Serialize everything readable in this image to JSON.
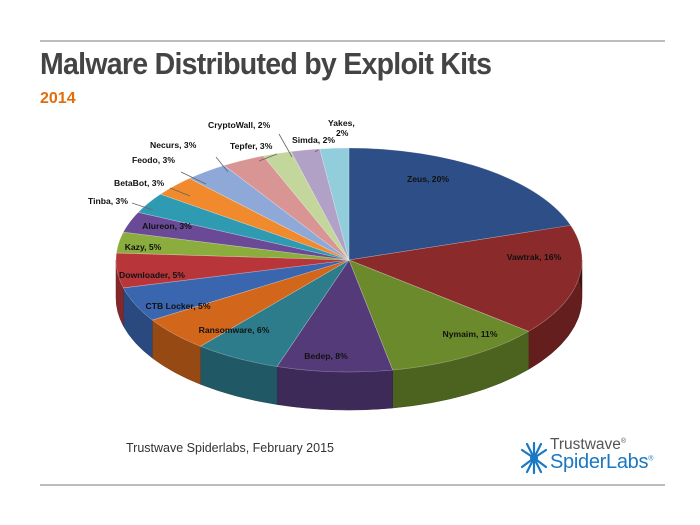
{
  "slide": {
    "title": "Malware Distributed by Exploit Kits",
    "subtitle": "2014",
    "credit": "Trustwave Spiderlabs, February 2015",
    "logo_top": "Trustwave",
    "logo_bottom": "SpiderLabs",
    "logo_mark": "®",
    "logo_icon": "spider-burst-icon"
  },
  "chart_data": {
    "type": "pie",
    "title": "Malware Distributed by Exploit Kits",
    "subtitle": "2014",
    "slices": [
      {
        "label": "Zeus, 20%",
        "name": "Zeus",
        "value": 20,
        "color": "#2d4e86"
      },
      {
        "label": "Vawtrak, 16%",
        "name": "Vawtrak",
        "value": 16,
        "color": "#8b2a2a"
      },
      {
        "label": "Nymaim, 11%",
        "name": "Nymaim",
        "value": 11,
        "color": "#6a8a2c"
      },
      {
        "label": "Bedep, 8%",
        "name": "Bedep",
        "value": 8,
        "color": "#553a7a"
      },
      {
        "label": "Ransomware, 6%",
        "name": "Ransomware",
        "value": 6,
        "color": "#2c7c8c"
      },
      {
        "label": "CTB Locker, 5%",
        "name": "CTB Locker",
        "value": 5,
        "color": "#d2661a"
      },
      {
        "label": "Downloader, 5%",
        "name": "Downloader",
        "value": 5,
        "color": "#3a66b0"
      },
      {
        "label": "Kazy, 5%",
        "name": "Kazy",
        "value": 5,
        "color": "#b8363a"
      },
      {
        "label": "Alureon, 3%",
        "name": "Alureon",
        "value": 3,
        "color": "#8aad3e"
      },
      {
        "label": "Tinba, 3%",
        "name": "Tinba",
        "value": 3,
        "color": "#6a4a96"
      },
      {
        "label": "BetaBot, 3%",
        "name": "BetaBot",
        "value": 3,
        "color": "#2f9bb3"
      },
      {
        "label": "Feodo, 3%",
        "name": "Feodo",
        "value": 3,
        "color": "#f08a2c"
      },
      {
        "label": "Necurs, 3%",
        "name": "Necurs",
        "value": 3,
        "color": "#8ea9d8"
      },
      {
        "label": "Tepfer, 3%",
        "name": "Tepfer",
        "value": 3,
        "color": "#d99594"
      },
      {
        "label": "CryptoWall, 2%",
        "name": "CryptoWall",
        "value": 2,
        "color": "#c3d69b"
      },
      {
        "label": "Simda, 2%",
        "name": "Simda",
        "value": 2,
        "color": "#b2a1c7"
      },
      {
        "label": "Yakes, 2%",
        "name": "Yakes",
        "value": 2,
        "color": "#92cddc"
      }
    ]
  }
}
